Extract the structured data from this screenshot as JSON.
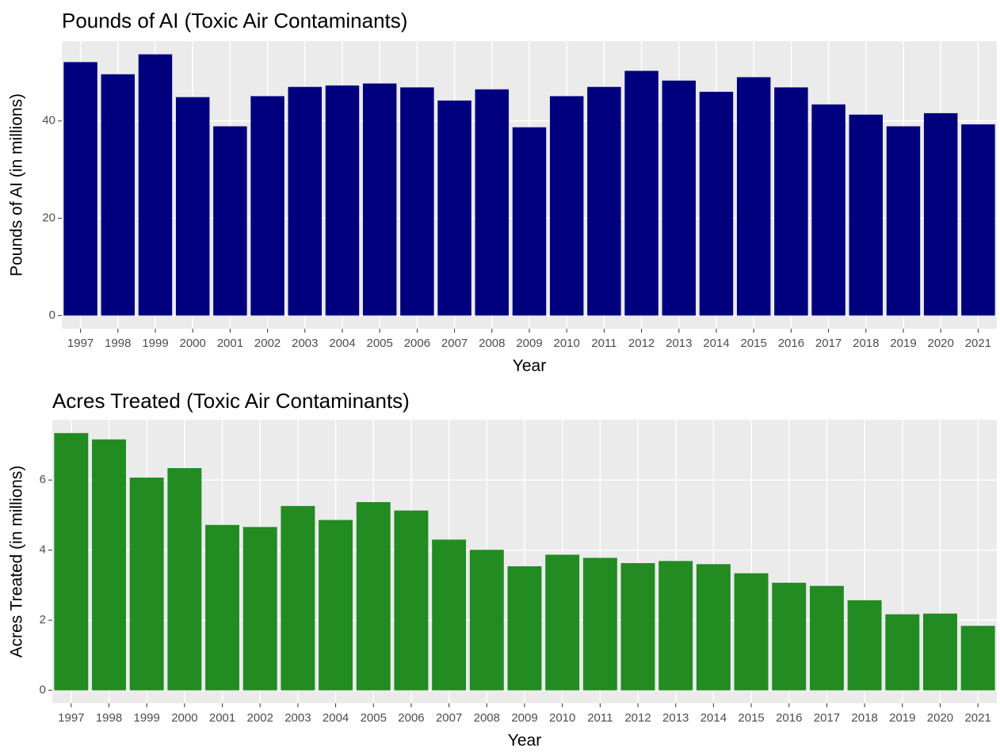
{
  "chart_data": [
    {
      "type": "bar",
      "title": "Pounds of AI (Toxic Air Contaminants)",
      "x_label": "Year",
      "y_label": "Pounds of AI (in millions)",
      "categories": [
        "1997",
        "1998",
        "1999",
        "2000",
        "2001",
        "2002",
        "2003",
        "2004",
        "2005",
        "2006",
        "2007",
        "2008",
        "2009",
        "2010",
        "2011",
        "2012",
        "2013",
        "2014",
        "2015",
        "2016",
        "2017",
        "2018",
        "2019",
        "2020",
        "2021"
      ],
      "values": [
        52.1,
        49.6,
        53.7,
        44.9,
        38.9,
        45.1,
        47.0,
        47.3,
        47.7,
        46.9,
        44.2,
        46.5,
        38.7,
        45.1,
        47.0,
        50.3,
        48.3,
        46.0,
        49.0,
        46.9,
        43.4,
        41.3,
        38.9,
        41.6,
        39.3
      ],
      "color": "#00007f",
      "ylim": [
        -2.7,
        56.4
      ],
      "yticks": [
        0,
        20,
        40
      ],
      "grid": true
    },
    {
      "type": "bar",
      "title": "Acres Treated (Toxic Air Contaminants)",
      "x_label": "Year",
      "y_label": "Acres Treated (in millions)",
      "categories": [
        "1997",
        "1998",
        "1999",
        "2000",
        "2001",
        "2002",
        "2003",
        "2004",
        "2005",
        "2006",
        "2007",
        "2008",
        "2009",
        "2010",
        "2011",
        "2012",
        "2013",
        "2014",
        "2015",
        "2016",
        "2017",
        "2018",
        "2019",
        "2020",
        "2021"
      ],
      "values": [
        7.34,
        7.16,
        6.07,
        6.34,
        4.72,
        4.66,
        5.26,
        4.86,
        5.37,
        5.13,
        4.3,
        4.01,
        3.54,
        3.87,
        3.78,
        3.63,
        3.69,
        3.6,
        3.34,
        3.07,
        2.98,
        2.57,
        2.17,
        2.19,
        1.84
      ],
      "color": "#228b22",
      "ylim": [
        -0.37,
        7.72
      ],
      "yticks": [
        0,
        2,
        4,
        6
      ],
      "grid": true
    }
  ]
}
